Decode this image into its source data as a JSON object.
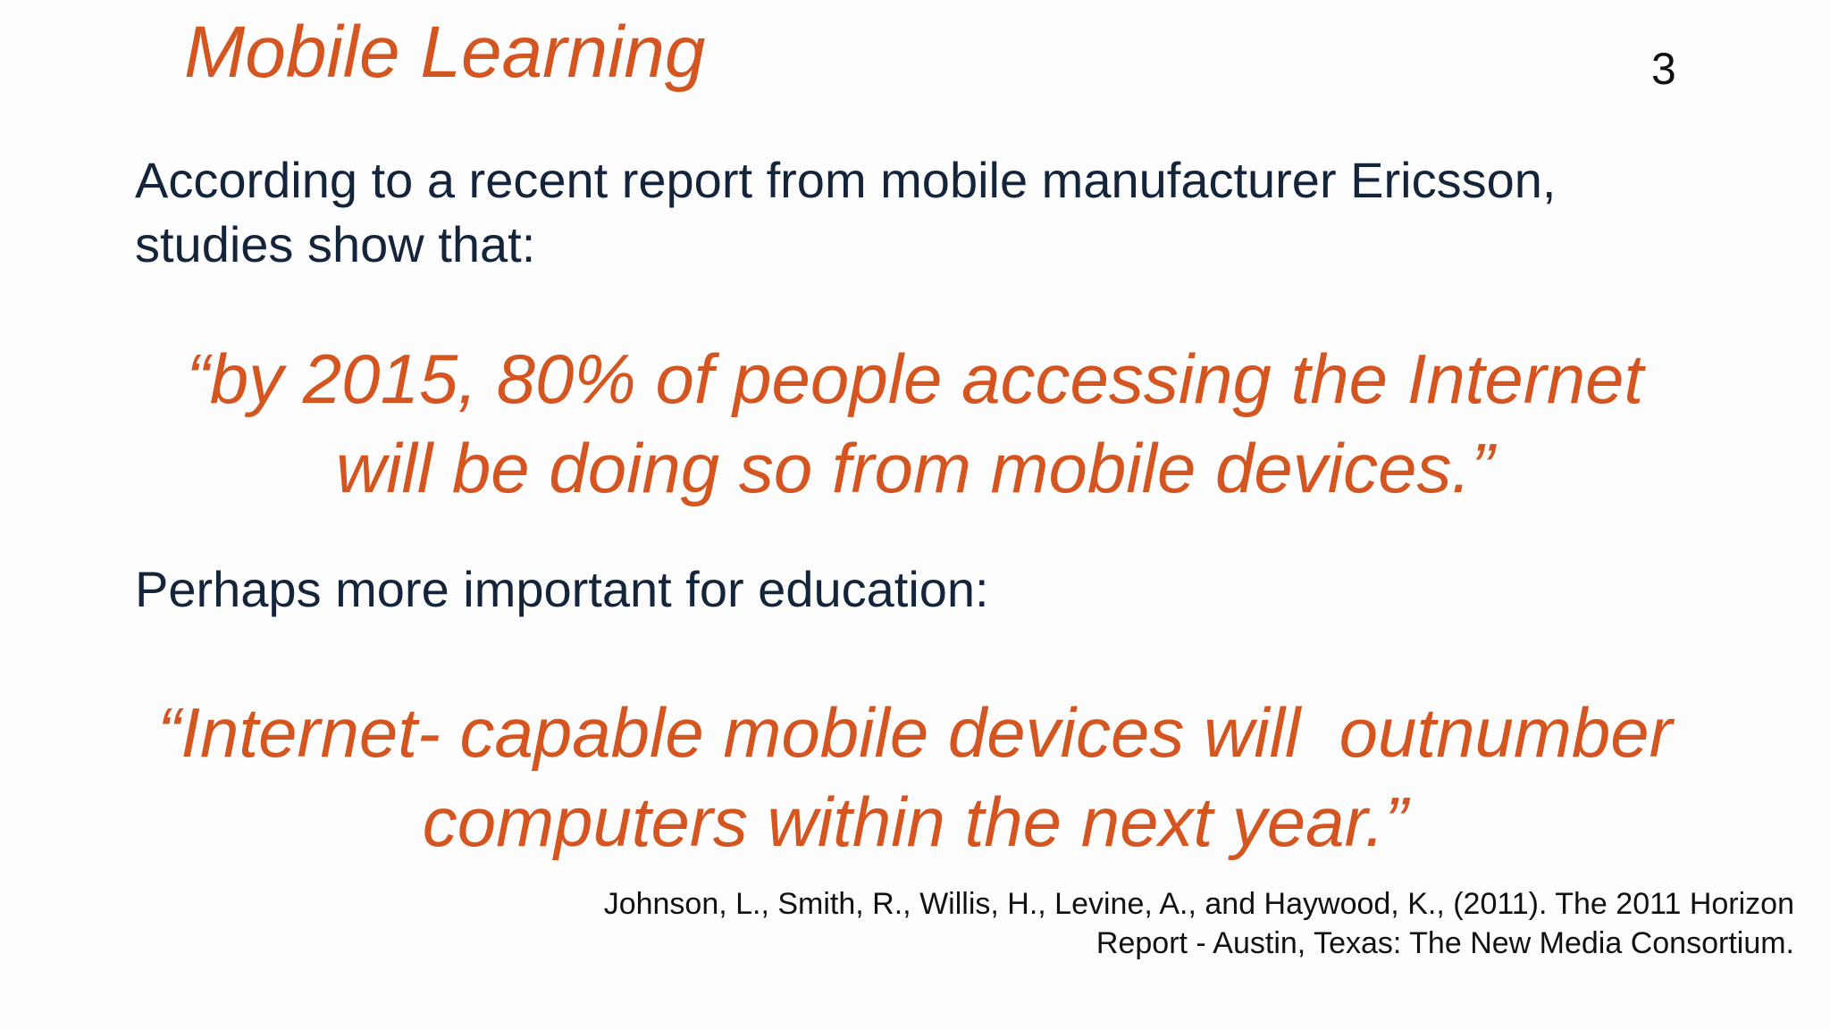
{
  "slide": {
    "title": "Mobile Learning",
    "page_number": "3",
    "intro": {
      "line1": "According to a recent report from mobile manufacturer Ericsson,",
      "line2": "studies show that:"
    },
    "quote1": {
      "line1": "“by 2015, 80% of people accessing the Internet",
      "line2": "will be doing so from mobile devices.”"
    },
    "intro2": "Perhaps more important for education:",
    "quote2": {
      "line1": "“Internet- capable mobile devices will  outnumber",
      "line2": "computers within the next year.”"
    },
    "citation": {
      "line1": "Johnson, L., Smith, R., Willis, H., Levine, A., and Haywood, K., (2011). The 2011 Horizon",
      "line2": "Report - Austin, Texas: The New Media Consortium."
    }
  },
  "colors": {
    "accent": "#d4551f",
    "body_text": "#14243a",
    "background": "#fdfdfd"
  }
}
